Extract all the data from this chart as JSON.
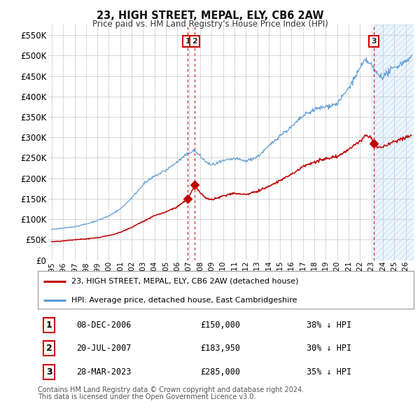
{
  "title": "23, HIGH STREET, MEPAL, ELY, CB6 2AW",
  "subtitle": "Price paid vs. HM Land Registry's House Price Index (HPI)",
  "ytick_values": [
    0,
    50000,
    100000,
    150000,
    200000,
    250000,
    300000,
    350000,
    400000,
    450000,
    500000,
    550000
  ],
  "ylim_max": 575000,
  "xlim_start": 1994.7,
  "xlim_end": 2026.7,
  "hpi_color": "#5b9bd5",
  "price_paid_color": "#c00000",
  "grid_color": "#c8c8c8",
  "background_color": "#ffffff",
  "sale_events": [
    {
      "id": 1,
      "year": 2006.92,
      "price": 150000,
      "date": "08-DEC-2006",
      "price_str": "£150,000",
      "pct_str": "38% ↓ HPI"
    },
    {
      "id": 2,
      "year": 2007.54,
      "price": 183950,
      "date": "20-JUL-2007",
      "price_str": "£183,950",
      "pct_str": "30% ↓ HPI"
    },
    {
      "id": 3,
      "year": 2023.23,
      "price": 285000,
      "date": "28-MAR-2023",
      "price_str": "£285,000",
      "pct_str": "35% ↓ HPI"
    }
  ],
  "legend_label_red": "23, HIGH STREET, MEPAL, ELY, CB6 2AW (detached house)",
  "legend_label_blue": "HPI: Average price, detached house, East Cambridgeshire",
  "footnote_line1": "Contains HM Land Registry data © Crown copyright and database right 2024.",
  "footnote_line2": "This data is licensed under the Open Government Licence v3.0.",
  "xtick_years": [
    1995,
    1996,
    1997,
    1998,
    1999,
    2000,
    2001,
    2002,
    2003,
    2004,
    2005,
    2006,
    2007,
    2008,
    2009,
    2010,
    2011,
    2012,
    2013,
    2014,
    2015,
    2016,
    2017,
    2018,
    2019,
    2020,
    2021,
    2022,
    2023,
    2024,
    2025,
    2026
  ],
  "future_shade_start": 2023.23,
  "future_shade_end": 2026.7
}
